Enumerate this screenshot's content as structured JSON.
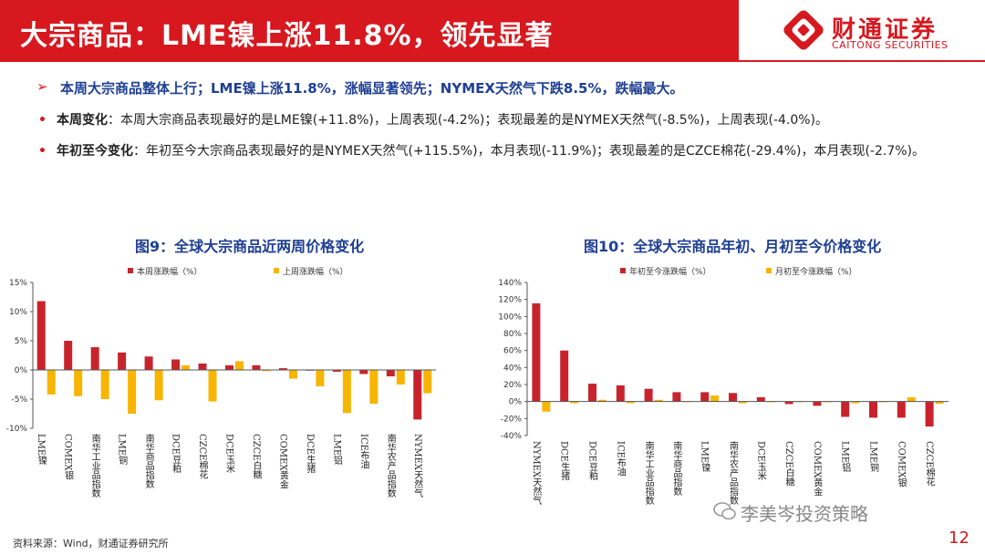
{
  "header": {
    "title": "大宗商品：LME镍上涨11.8%，领先显著",
    "logo_cn": "财通证券",
    "logo_en": "CAITONG SECURITIES"
  },
  "bullets": {
    "main": "本周大宗商品整体上行；LME镍上涨11.8%，涨幅显著领先；NYMEX天然气下跌8.5%，跌幅最大。",
    "week_label": "本周变化",
    "week_text": "：本周大宗商品表现最好的是LME镍(+11.8%)，上周表现(-4.2%)；表现最差的是NYMEX天然气(-8.5%)，上周表现(-4.0%)。",
    "ytd_label": "年初至今变化",
    "ytd_text": "：年初至今大宗商品表现最好的是NYMEX天然气(+115.5%)，本月表现(-11.9%)；表现最差的是CZCE棉花(-29.4%)，本月表现(-2.7%)。"
  },
  "charts": {
    "left_title": "图9：全球大宗商品近两周价格变化",
    "right_title": "图10：全球大宗商品年初、月初至今价格变化"
  },
  "footer": {
    "source": "资料来源：Wind，财通证券研究所",
    "watermark": "李美岑投资策略",
    "page": "12"
  },
  "colors": {
    "red": "#c8232c",
    "yellow": "#f7b500",
    "brand": "#d7181f",
    "navy": "#1f3f94"
  },
  "chart_data": [
    {
      "type": "bar",
      "title": "图9：全球大宗商品近两周价格变化",
      "categories": [
        "LME镍",
        "COMEX银",
        "南华工业品指数",
        "LME铜",
        "南华商品指数",
        "DCE豆粕",
        "CZCE棉花",
        "DCE玉米",
        "CZCE白糖",
        "COMEX黄金",
        "DCE生猪",
        "LME铝",
        "ICE布油",
        "南华农产品指数",
        "NYMEX天然气"
      ],
      "series": [
        {
          "name": "本周涨跌幅（%）",
          "values": [
            11.8,
            5.0,
            3.9,
            3.0,
            2.3,
            1.8,
            1.1,
            0.8,
            0.8,
            0.3,
            0.0,
            -0.3,
            -0.7,
            -1.1,
            -8.5
          ]
        },
        {
          "name": "上周涨跌幅（%）",
          "values": [
            -4.2,
            -4.5,
            -5.0,
            -7.5,
            -5.2,
            0.8,
            -5.4,
            1.5,
            -0.2,
            -1.5,
            -2.8,
            -7.4,
            -5.8,
            -2.5,
            -4.0
          ]
        }
      ],
      "ylim": [
        -10,
        15
      ],
      "yticks": [
        "15%",
        "10%",
        "5%",
        "0%",
        "-5%",
        "-10%"
      ],
      "ytick_values": [
        15,
        10,
        5,
        0,
        -5,
        -10
      ],
      "legend": "top"
    },
    {
      "type": "bar",
      "title": "图10：全球大宗商品年初、月初至今价格变化",
      "categories": [
        "NYMEX天然气",
        "DCE生猪",
        "DCE豆粕",
        "ICE布油",
        "南华工业品指数",
        "南华商品指数",
        "LME镍",
        "南华农产品指数",
        "DCE玉米",
        "CZCE白糖",
        "COMEX黄金",
        "LME铝",
        "LME铜",
        "COMEX银",
        "CZCE棉花"
      ],
      "series": [
        {
          "name": "年初至今涨跌幅（%）",
          "values": [
            115.5,
            60.0,
            21.0,
            19.0,
            15.0,
            11.0,
            11.0,
            10.0,
            5.0,
            -3.0,
            -5.0,
            -18.0,
            -19.0,
            -19.0,
            -29.4
          ]
        },
        {
          "name": "月初至今涨跌幅（%）",
          "values": [
            -11.9,
            -2.0,
            2.0,
            -2.0,
            2.0,
            0.0,
            7.0,
            -2.0,
            0.0,
            0.0,
            0.0,
            -2.0,
            0.0,
            5.0,
            -2.7
          ]
        }
      ],
      "ylim": [
        -40,
        140
      ],
      "yticks": [
        "140%",
        "120%",
        "100%",
        "80%",
        "60%",
        "40%",
        "20%",
        "0%",
        "-20%",
        "-40%"
      ],
      "ytick_values": [
        140,
        120,
        100,
        80,
        60,
        40,
        20,
        0,
        -20,
        -40
      ],
      "legend": "top"
    }
  ]
}
